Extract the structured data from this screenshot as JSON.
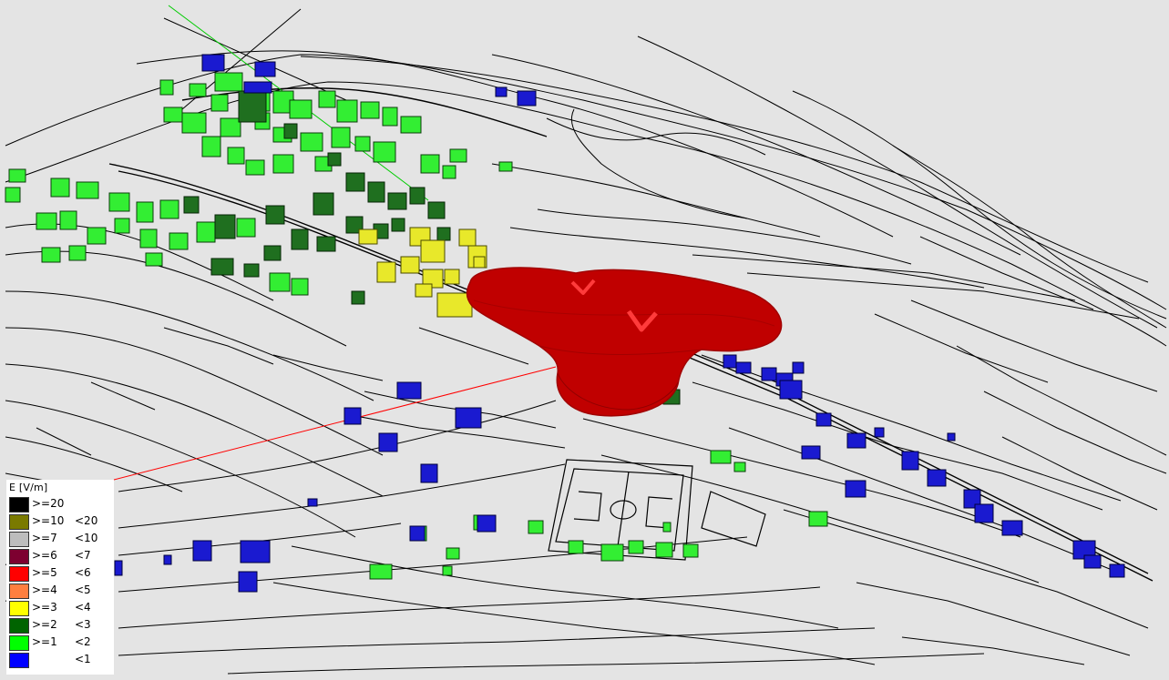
{
  "legend": {
    "title": "E [V/m]",
    "entries": [
      {
        "min": ">=20",
        "max": "",
        "color": "#000000"
      },
      {
        "min": ">=10",
        "max": "<20",
        "color": "#7a7a00"
      },
      {
        "min": ">=7",
        "max": "<10",
        "color": "#bdbdbd"
      },
      {
        "min": ">=6",
        "max": "<7",
        "color": "#7d0030"
      },
      {
        "min": ">=5",
        "max": "<6",
        "color": "#ff0000"
      },
      {
        "min": ">=4",
        "max": "<5",
        "color": "#ff7f3f"
      },
      {
        "min": ">=3",
        "max": "<4",
        "color": "#ffff00"
      },
      {
        "min": ">=2",
        "max": "<3",
        "color": "#006400"
      },
      {
        "min": ">=1",
        "max": "<2",
        "color": "#00ff00"
      },
      {
        "min": "",
        "max": "<1",
        "color": "#0000ff"
      }
    ]
  },
  "scene": {
    "background": "#e4e4e4",
    "field_volume_color": "#c00000",
    "building_level_colors": {
      "below_1": "#1a1ad0",
      "from_1_to_2": "#33ee33",
      "from_2_to_3": "#1f6f1f",
      "from_3_to_4": "#e8e82a"
    },
    "axis_colors": {
      "x": "#ff0000",
      "y": "#00cc00"
    }
  }
}
